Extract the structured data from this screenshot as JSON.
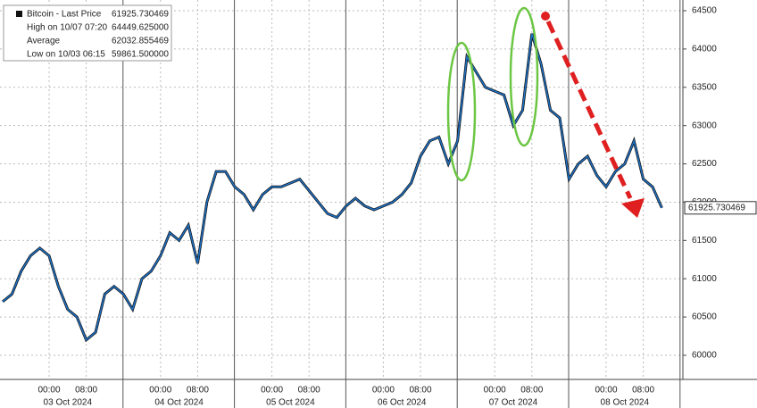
{
  "chart_data": {
    "type": "line",
    "categories": [
      null,
      null,
      null,
      null,
      null,
      "00:00",
      null,
      null,
      null,
      "08:00",
      null,
      null,
      null,
      null,
      null,
      null,
      null,
      "00:00",
      null,
      null,
      null,
      "08:00",
      null,
      null,
      null,
      null,
      null,
      null,
      null,
      "00:00",
      null,
      null,
      null,
      "08:00",
      null,
      null,
      null,
      null,
      null,
      null,
      null,
      "00:00",
      null,
      null,
      null,
      "08:00",
      null,
      null,
      null,
      null,
      null,
      null,
      null,
      "00:00",
      null,
      null,
      null,
      "08:00",
      null,
      null,
      null,
      null,
      null,
      null,
      null,
      "00:00",
      null,
      null,
      null,
      "08:00",
      null,
      null
    ],
    "date_labels": [
      "03 Oct 2024",
      "04 Oct 2024",
      "05 Oct 2024",
      "06 Oct 2024",
      "07 Oct 2024",
      "08 Oct 2024"
    ],
    "series": [
      {
        "name": "Bitcoin - Last Price",
        "color": "#1f6fc0",
        "last_label": "61925.730469",
        "values": [
          60700,
          60800,
          61100,
          61300,
          61400,
          61300,
          60900,
          60600,
          60500,
          60200,
          60300,
          60800,
          60900,
          60800,
          60600,
          61000,
          61100,
          61300,
          61600,
          61500,
          61700,
          61200,
          62000,
          62400,
          62400,
          62200,
          62100,
          61900,
          62100,
          62200,
          62200,
          62250,
          62300,
          62150,
          62000,
          61850,
          61800,
          61950,
          62050,
          61950,
          61900,
          61950,
          62000,
          62100,
          62250,
          62600,
          62800,
          62850,
          62500,
          62800,
          63900,
          63700,
          63500,
          63450,
          63400,
          63000,
          63200,
          64200,
          63800,
          63200,
          63100,
          62300,
          62500,
          62600,
          62350,
          62200,
          62400,
          62500,
          62800,
          62300,
          62200,
          61926
        ]
      }
    ],
    "stats": [
      {
        "label": "High on 10/07 07:20",
        "value": "64449.625000"
      },
      {
        "label": "Average",
        "value": "62032.855469"
      },
      {
        "label": "Low on 10/03 06:15",
        "value": "59861.500000"
      }
    ],
    "ylim": [
      59685,
      64640
    ],
    "yticks": [
      60000,
      60500,
      61000,
      61500,
      62000,
      62500,
      63000,
      63500,
      64000,
      64500
    ],
    "grid": true
  }
}
